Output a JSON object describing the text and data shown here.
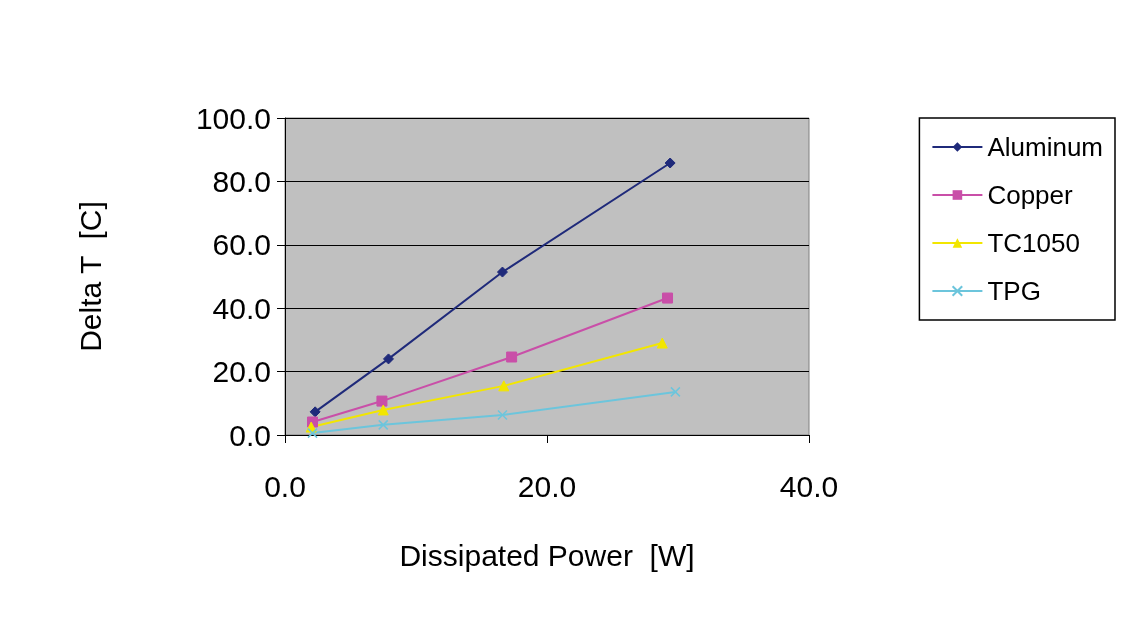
{
  "chart_data": {
    "type": "line",
    "xlabel": "Dissipated Power  [W]",
    "ylabel": "Delta T  [C]",
    "xlim": [
      0,
      40
    ],
    "xticks": [
      {
        "value": 0,
        "label": "0.0"
      },
      {
        "value": 20,
        "label": "20.0"
      },
      {
        "value": 40,
        "label": "40.0"
      }
    ],
    "ylim": [
      0,
      100
    ],
    "yticks": [
      {
        "value": 0,
        "label": "0.0"
      },
      {
        "value": 20,
        "label": "20.0"
      },
      {
        "value": 40,
        "label": "40.0"
      },
      {
        "value": 60,
        "label": "60.0"
      },
      {
        "value": 80,
        "label": "80.0"
      },
      {
        "value": 100,
        "label": "100.0"
      }
    ],
    "grid": "y",
    "legend": "right",
    "series": [
      {
        "name": "Aluminum",
        "color": "#1f2a7a",
        "marker": "diamond",
        "x": [
          2.3,
          7.9,
          16.6,
          29.4
        ],
        "values": [
          7.3,
          24,
          51.4,
          85.8
        ]
      },
      {
        "name": "Copper",
        "color": "#c94fa8",
        "marker": "square",
        "x": [
          2.1,
          7.4,
          17.3,
          29.2
        ],
        "values": [
          4.1,
          10.7,
          24.6,
          43.2
        ]
      },
      {
        "name": "TC1050",
        "color": "#f2e600",
        "marker": "triangle",
        "x": [
          2,
          7.5,
          16.7,
          28.8
        ],
        "values": [
          2.5,
          7.9,
          15.5,
          29
        ]
      },
      {
        "name": "TPG",
        "color": "#6cc5dc",
        "marker": "cross",
        "x": [
          2.1,
          7.5,
          16.6,
          29.8
        ],
        "values": [
          0.6,
          3.2,
          6.3,
          13.6
        ]
      }
    ]
  }
}
